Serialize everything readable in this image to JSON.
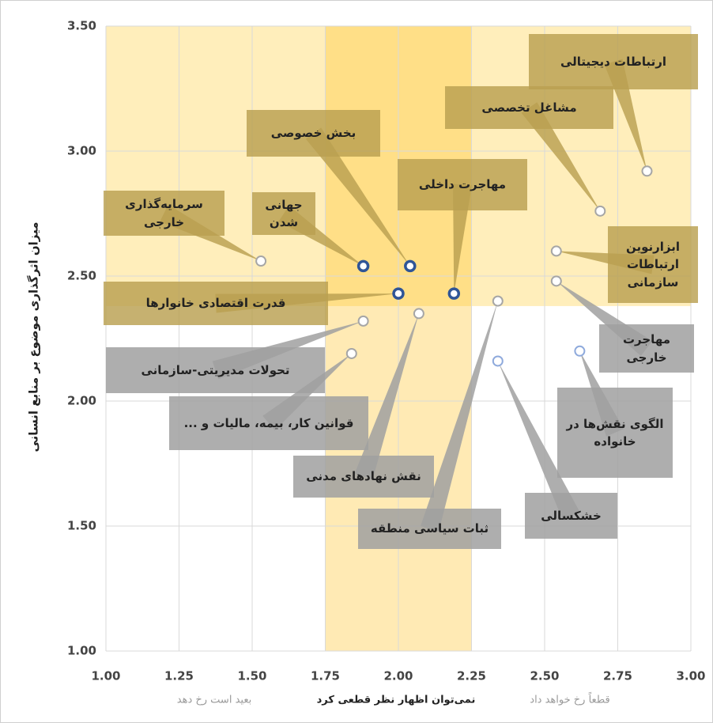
{
  "chart_data": {
    "type": "scatter",
    "y_label": "میزان اثرگذاری موضوع بر منابع انسانی",
    "x_annotations": [
      "بعید است رخ دهد",
      "نمی‌توان اظهار نظر قطعی کرد",
      "قطعاً رخ خواهد داد"
    ],
    "labels": [
      "ارتباطات دیجیتالی",
      "مشاغل تخصصی",
      "ابزارنوین ارتباطات سازمانی",
      "مهاجرت خارجی",
      "الگوی نقش‌ها در خانواده",
      "خشکسالی",
      "ثبات سیاسی منطقه",
      "نقش نهادهای مدنی",
      "قوانین کار، بیمه، مالیات و ...",
      "تحولات مدیریتی-سازمانی",
      "سرمایه‌گذاری خارجی",
      "جهانی شدن",
      "بخش خصوصی",
      "مهاجرت داخلی",
      "قدرت اقتصادی خانوارها"
    ],
    "x": [
      2.85,
      2.69,
      2.54,
      2.54,
      2.62,
      2.34,
      2.34,
      2.07,
      1.84,
      1.88,
      1.53,
      1.88,
      2.04,
      2.19,
      2.0
    ],
    "values": [
      2.92,
      2.76,
      2.6,
      2.48,
      2.2,
      2.16,
      2.4,
      2.35,
      2.19,
      2.32,
      2.56,
      2.54,
      2.54,
      2.43,
      2.43
    ],
    "colors": [
      "#a6a6a6",
      "#a6a6a6",
      "#a6a6a6",
      "#a6a6a6",
      "#8faadc",
      "#8faadc",
      "#a6a6a6",
      "#a6a6a6",
      "#a6a6a6",
      "#a6a6a6",
      "#a6a6a6",
      "#2f5597",
      "#2f5597",
      "#2f5597",
      "#2f5597"
    ],
    "x_band": [
      1.75,
      2.25
    ],
    "y_band": [
      2.38,
      3.5
    ],
    "xlim": [
      1,
      3
    ],
    "ylim": [
      1,
      3.5
    ],
    "xticks": [
      {
        "value": 1,
        "label": "1.00"
      },
      {
        "value": 1.25,
        "label": "1.25"
      },
      {
        "value": 1.5,
        "label": "1.50"
      },
      {
        "value": 1.75,
        "label": "1.75"
      },
      {
        "value": 2,
        "label": "2.00"
      },
      {
        "value": 2.25,
        "label": "2.25"
      },
      {
        "value": 2.5,
        "label": "2.50"
      },
      {
        "value": 2.75,
        "label": "2.75"
      },
      {
        "value": 3,
        "label": "3.00"
      }
    ],
    "yticks": [
      {
        "value": 1,
        "label": "1.00"
      },
      {
        "value": 1.5,
        "label": "1.50"
      },
      {
        "value": 2,
        "label": "2.00"
      },
      {
        "value": 2.5,
        "label": "2.50"
      },
      {
        "value": 3,
        "label": "3.00"
      },
      {
        "value": 3.5,
        "label": "3.50"
      }
    ],
    "grid": true
  }
}
